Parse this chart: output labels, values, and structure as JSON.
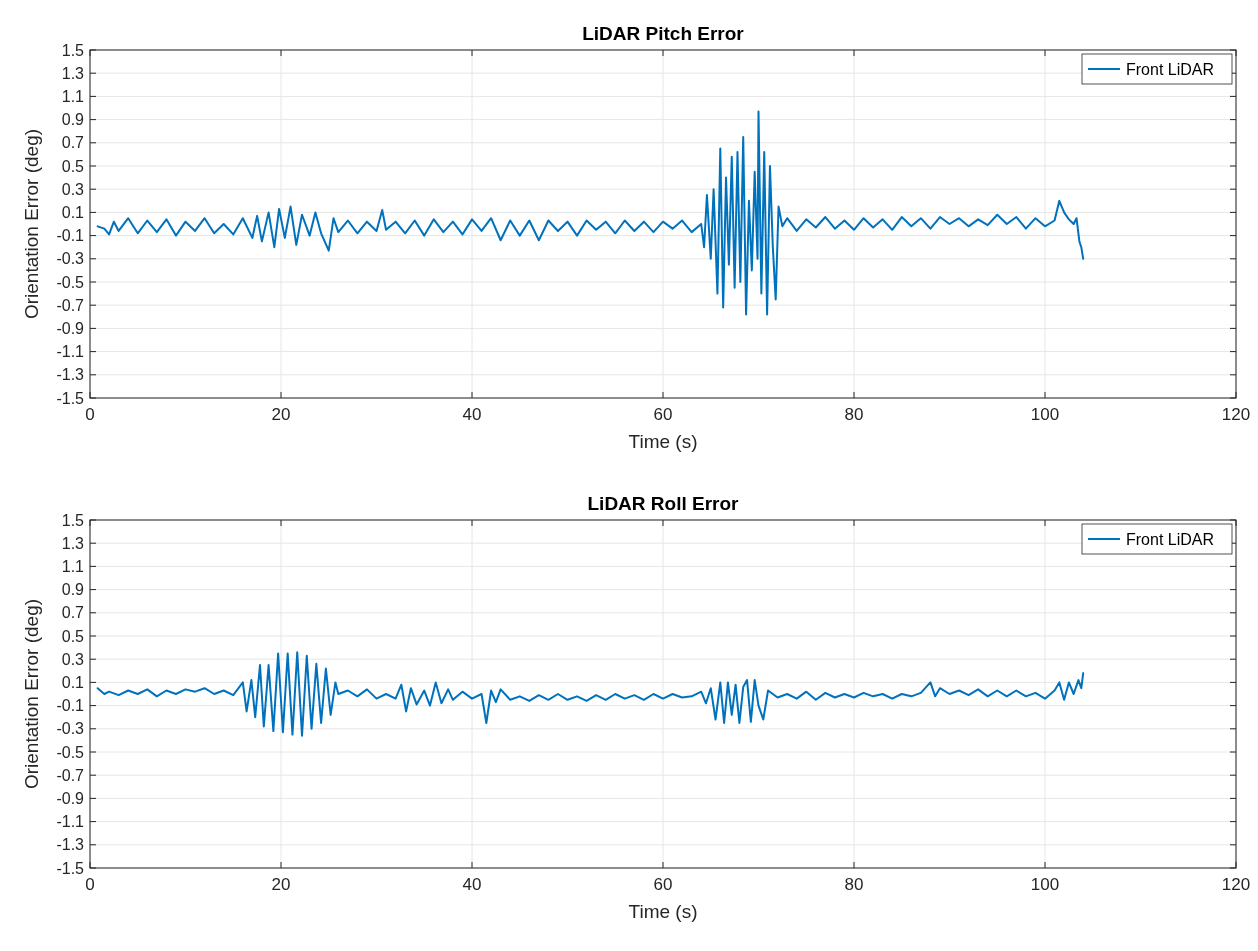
{
  "chart_data": [
    {
      "type": "line",
      "title": "LiDAR Pitch Error",
      "xlabel": "Time (s)",
      "ylabel": "Orientation Error (deg)",
      "xlim": [
        0,
        120
      ],
      "xticks": [
        0,
        20,
        40,
        60,
        80,
        100,
        120
      ],
      "ylim": [
        -1.5,
        1.5
      ],
      "yticks": [
        -1.5,
        -1.3,
        -1.1,
        -0.9,
        -0.7,
        -0.5,
        -0.3,
        -0.1,
        0.1,
        0.3,
        0.5,
        0.7,
        0.9,
        1.1,
        1.3,
        1.5
      ],
      "grid": true,
      "legend": "top right",
      "series": [
        {
          "name": "Front LiDAR",
          "color": "#0072bd",
          "x": [
            0.8,
            1.5,
            2,
            2.5,
            3,
            4,
            5,
            6,
            7,
            8,
            9,
            10,
            11,
            12,
            13,
            14,
            15,
            16,
            17,
            17.5,
            18,
            18.7,
            19.3,
            19.8,
            20.4,
            21,
            21.6,
            22.2,
            23,
            23.6,
            24.2,
            25,
            25.5,
            26,
            27,
            28,
            29,
            30,
            30.6,
            31,
            32,
            33,
            34,
            35,
            36,
            37,
            38,
            39,
            40,
            41,
            42,
            43,
            44,
            45,
            46,
            47,
            48,
            49,
            50,
            51,
            52,
            53,
            54,
            55,
            56,
            57,
            58,
            59,
            60,
            61,
            62,
            63,
            64,
            64.3,
            64.6,
            65,
            65.3,
            65.7,
            66,
            66.3,
            66.6,
            66.9,
            67.2,
            67.5,
            67.8,
            68.1,
            68.4,
            68.7,
            69,
            69.3,
            69.6,
            69.9,
            70,
            70.3,
            70.6,
            70.9,
            71.2,
            71.5,
            71.8,
            72.1,
            72.5,
            73,
            74,
            75,
            76,
            77,
            78,
            79,
            80,
            81,
            82,
            83,
            84,
            85,
            86,
            87,
            88,
            89,
            90,
            91,
            92,
            93,
            94,
            95,
            96,
            97,
            98,
            99,
            100,
            101,
            101.5,
            102,
            102.5,
            103,
            103.3,
            103.6,
            103.8,
            104
          ],
          "values": [
            -0.02,
            -0.04,
            -0.09,
            0.02,
            -0.06,
            0.05,
            -0.08,
            0.03,
            -0.07,
            0.04,
            -0.1,
            0.02,
            -0.06,
            0.05,
            -0.08,
            0,
            -0.09,
            0.05,
            -0.12,
            0.07,
            -0.15,
            0.1,
            -0.2,
            0.13,
            -0.12,
            0.15,
            -0.18,
            0.08,
            -0.1,
            0.1,
            -0.08,
            -0.23,
            0.05,
            -0.07,
            0.03,
            -0.08,
            0.02,
            -0.06,
            0.12,
            -0.05,
            0.02,
            -0.08,
            0.03,
            -0.1,
            0.04,
            -0.07,
            0.02,
            -0.09,
            0.04,
            -0.06,
            0.05,
            -0.14,
            0.03,
            -0.1,
            0.03,
            -0.14,
            0.03,
            -0.06,
            0.02,
            -0.1,
            0.03,
            -0.05,
            0.02,
            -0.08,
            0.03,
            -0.06,
            0.02,
            -0.07,
            0.02,
            -0.04,
            0.03,
            -0.07,
            0,
            -0.2,
            0.25,
            -0.3,
            0.3,
            -0.6,
            0.65,
            -0.72,
            0.4,
            -0.35,
            0.58,
            -0.55,
            0.62,
            -0.5,
            0.75,
            -0.78,
            0.2,
            -0.4,
            0.45,
            -0.3,
            0.97,
            -0.6,
            0.62,
            -0.78,
            0.5,
            -0.2,
            -0.65,
            0.15,
            -0.02,
            0.05,
            -0.06,
            0.04,
            -0.03,
            0.06,
            -0.04,
            0.03,
            -0.05,
            0.05,
            -0.03,
            0.04,
            -0.05,
            0.06,
            -0.02,
            0.05,
            -0.04,
            0.06,
            0,
            0.05,
            -0.02,
            0.04,
            -0.01,
            0.08,
            0,
            0.06,
            -0.04,
            0.05,
            -0.02,
            0.03,
            0.2,
            0.1,
            0.04,
            0,
            0.05,
            -0.15,
            -0.2,
            -0.3
          ]
        }
      ]
    },
    {
      "type": "line",
      "title": "LiDAR Roll Error",
      "xlabel": "Time (s)",
      "ylabel": "Orientation Error (deg)",
      "xlim": [
        0,
        120
      ],
      "xticks": [
        0,
        20,
        40,
        60,
        80,
        100,
        120
      ],
      "ylim": [
        -1.5,
        1.5
      ],
      "yticks": [
        -1.5,
        -1.3,
        -1.1,
        -0.9,
        -0.7,
        -0.5,
        -0.3,
        -0.1,
        0.1,
        0.3,
        0.5,
        0.7,
        0.9,
        1.1,
        1.3,
        1.5
      ],
      "grid": true,
      "legend": "top right",
      "series": [
        {
          "name": "Front LiDAR",
          "color": "#0072bd",
          "x": [
            0.8,
            1.5,
            2,
            3,
            4,
            5,
            6,
            7,
            8,
            9,
            10,
            11,
            12,
            13,
            14,
            15,
            16,
            16.4,
            16.9,
            17.3,
            17.8,
            18.2,
            18.7,
            19.2,
            19.7,
            20.2,
            20.7,
            21.2,
            21.7,
            22.2,
            22.7,
            23.2,
            23.7,
            24.2,
            24.7,
            25.2,
            25.7,
            26,
            27,
            28,
            29,
            30,
            31,
            32,
            32.6,
            33.1,
            33.6,
            34.2,
            35,
            35.6,
            36.2,
            36.8,
            37.5,
            38,
            39,
            40,
            41,
            41.5,
            42,
            42.5,
            43,
            44,
            45,
            46,
            47,
            48,
            49,
            50,
            51,
            52,
            53,
            54,
            55,
            56,
            57,
            58,
            59,
            60,
            61,
            62,
            63,
            64,
            64.5,
            65,
            65.5,
            66,
            66.4,
            66.8,
            67.2,
            67.6,
            68,
            68.4,
            68.8,
            69.2,
            69.6,
            70,
            70.5,
            71,
            72,
            73,
            74,
            75,
            76,
            77,
            78,
            79,
            80,
            81,
            82,
            83,
            84,
            85,
            86,
            87,
            88,
            88.5,
            89,
            90,
            91,
            92,
            93,
            94,
            95,
            96,
            97,
            98,
            99,
            100,
            101,
            101.5,
            102,
            102.5,
            103,
            103.5,
            103.8,
            104
          ],
          "values": [
            0.05,
            0,
            0.02,
            -0.01,
            0.03,
            0,
            0.04,
            -0.02,
            0.03,
            0,
            0.04,
            0.02,
            0.05,
            0,
            0.03,
            -0.01,
            0.1,
            -0.15,
            0.12,
            -0.2,
            0.25,
            -0.28,
            0.25,
            -0.32,
            0.35,
            -0.33,
            0.35,
            -0.35,
            0.36,
            -0.36,
            0.33,
            -0.3,
            0.26,
            -0.25,
            0.22,
            -0.18,
            0.1,
            0,
            0.03,
            -0.02,
            0.04,
            -0.04,
            0,
            -0.04,
            0.08,
            -0.15,
            0.05,
            -0.09,
            0.03,
            -0.1,
            0.1,
            -0.08,
            0.04,
            -0.05,
            0.02,
            -0.04,
            0,
            -0.25,
            0.03,
            -0.07,
            0.04,
            -0.05,
            -0.02,
            -0.06,
            -0.01,
            -0.05,
            0,
            -0.05,
            -0.02,
            -0.06,
            -0.01,
            -0.05,
            0,
            -0.04,
            -0.01,
            -0.05,
            0,
            -0.04,
            0,
            -0.03,
            -0.02,
            0.02,
            -0.08,
            0.05,
            -0.22,
            0.1,
            -0.25,
            0.1,
            -0.18,
            0.08,
            -0.25,
            0.06,
            0.12,
            -0.24,
            0.12,
            -0.1,
            -0.22,
            0.03,
            -0.03,
            0,
            -0.04,
            0.02,
            -0.05,
            0.01,
            -0.03,
            0,
            -0.03,
            0.01,
            -0.02,
            0,
            -0.04,
            0,
            -0.02,
            0.01,
            0.1,
            -0.02,
            0.05,
            0,
            0.03,
            -0.01,
            0.04,
            -0.02,
            0.03,
            -0.02,
            0.03,
            -0.02,
            0.01,
            -0.04,
            0.03,
            0.1,
            -0.05,
            0.1,
            0,
            0.12,
            0.05,
            0.18
          ]
        }
      ]
    }
  ]
}
